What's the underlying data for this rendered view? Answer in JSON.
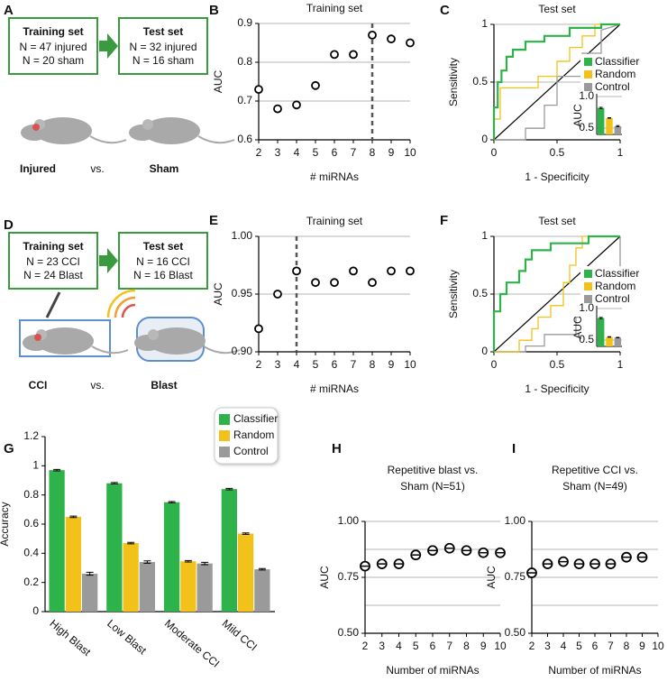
{
  "diagrams": [
    {
      "panel": "A",
      "boxes": [
        {
          "title": "Training set",
          "lines": [
            "N = 47 injured",
            "N = 20 sham"
          ]
        },
        {
          "title": "Test set",
          "lines": [
            "N = 32 injured",
            "N = 16 sham"
          ]
        }
      ],
      "labels": [
        "Injured",
        "vs.",
        "Sham"
      ]
    },
    {
      "panel": "D",
      "boxes": [
        {
          "title": "Training set",
          "lines": [
            "N = 23 CCI",
            "N = 24 Blast"
          ]
        },
        {
          "title": "Test set",
          "lines": [
            "N = 16 CCI",
            "N = 16 Blast"
          ]
        }
      ],
      "labels": [
        "CCI",
        "vs.",
        "Blast"
      ]
    }
  ],
  "chart_data": [
    {
      "panel": "B",
      "type": "scatter",
      "title": "Training set",
      "xlabel": "# miRNAs",
      "ylabel": "AUC",
      "x": [
        2,
        3,
        4,
        5,
        6,
        7,
        8,
        9,
        10
      ],
      "values": [
        0.73,
        0.68,
        0.69,
        0.74,
        0.82,
        0.82,
        0.87,
        0.86,
        0.85
      ],
      "xlim": [
        2,
        10
      ],
      "xticks": [
        2,
        3,
        4,
        5,
        6,
        7,
        8,
        9,
        10
      ],
      "ylim": [
        0.6,
        0.9
      ],
      "yticks": [
        0.6,
        0.7,
        0.8,
        0.9
      ],
      "grid": true,
      "vline": 8
    },
    {
      "panel": "C",
      "type": "line",
      "title": "Test set",
      "xlabel": "1 - Specificity",
      "ylabel": "Sensitivity",
      "xlim": [
        0,
        1
      ],
      "xticks": [
        0,
        0.5,
        1
      ],
      "ylim": [
        0,
        1
      ],
      "yticks": [
        0,
        0.5,
        1
      ],
      "grid": true,
      "legend": "right",
      "series": [
        {
          "name": "Classifier",
          "color": "#2db34a",
          "x": [
            0,
            0,
            0.03,
            0.03,
            0.06,
            0.06,
            0.1,
            0.1,
            0.15,
            0.15,
            0.25,
            0.25,
            0.4,
            0.4,
            0.6,
            0.6,
            0.85,
            0.85,
            1
          ],
          "values": [
            0,
            0.28,
            0.28,
            0.5,
            0.5,
            0.6,
            0.6,
            0.72,
            0.72,
            0.78,
            0.78,
            0.85,
            0.85,
            0.9,
            0.9,
            0.97,
            0.97,
            1,
            1
          ]
        },
        {
          "name": "Random",
          "color": "#f2c21b",
          "x": [
            0,
            0,
            0.05,
            0.05,
            0.35,
            0.35,
            0.5,
            0.5,
            0.6,
            0.6,
            0.7,
            0.7,
            0.8,
            0.8,
            1
          ],
          "values": [
            0,
            0.18,
            0.18,
            0.45,
            0.45,
            0.55,
            0.55,
            0.68,
            0.68,
            0.8,
            0.8,
            0.9,
            0.9,
            1,
            1
          ]
        },
        {
          "name": "Control",
          "color": "#9a9a9a",
          "x": [
            0,
            0.25,
            0.25,
            0.4,
            0.4,
            0.5,
            0.5,
            0.7,
            0.7,
            0.85,
            0.85,
            1
          ],
          "values": [
            0,
            0,
            0.1,
            0.1,
            0.3,
            0.3,
            0.55,
            0.55,
            0.75,
            0.75,
            0.95,
            1
          ]
        }
      ],
      "inset": {
        "ylabel": "AUC",
        "values": [
          0.82,
          0.66,
          0.53
        ],
        "errors": [
          0.01,
          0.005,
          0.01
        ],
        "ylim": [
          0.4,
          1
        ],
        "yticks": [
          0.5,
          {
            "value": 1,
            "label": "1.0"
          }
        ]
      }
    },
    {
      "panel": "E",
      "type": "scatter",
      "title": "Training set",
      "xlabel": "# miRNAs",
      "ylabel": "AUC",
      "x": [
        2,
        3,
        4,
        5,
        6,
        7,
        8,
        9,
        10
      ],
      "values": [
        0.92,
        0.95,
        0.97,
        0.96,
        0.96,
        0.97,
        0.96,
        0.97,
        0.97
      ],
      "xlim": [
        2,
        10
      ],
      "xticks": [
        2,
        3,
        4,
        5,
        6,
        7,
        8,
        9,
        10
      ],
      "ylim": [
        0.9,
        1.0
      ],
      "yticks": [
        {
          "value": 0.9,
          "label": "0.90"
        },
        {
          "value": 0.95,
          "label": "0.95"
        },
        {
          "value": 1.0,
          "label": "1.00"
        }
      ],
      "grid": true,
      "vline": 4
    },
    {
      "panel": "F",
      "type": "line",
      "title": "Test set",
      "xlabel": "1 - Specificity",
      "ylabel": "Sensitivity",
      "xlim": [
        0,
        1
      ],
      "xticks": [
        0,
        0.5,
        1
      ],
      "ylim": [
        0,
        1
      ],
      "yticks": [
        0,
        0.5,
        1
      ],
      "grid": true,
      "legend": "right",
      "series": [
        {
          "name": "Classifier",
          "color": "#2db34a",
          "x": [
            0,
            0,
            0.05,
            0.05,
            0.1,
            0.1,
            0.2,
            0.2,
            0.25,
            0.25,
            0.3,
            0.3,
            0.45,
            0.45,
            0.75,
            0.75,
            1
          ],
          "values": [
            0,
            0.35,
            0.35,
            0.5,
            0.5,
            0.6,
            0.6,
            0.7,
            0.7,
            0.8,
            0.8,
            0.88,
            0.88,
            0.94,
            0.94,
            1,
            1
          ]
        },
        {
          "name": "Random",
          "color": "#f2c21b",
          "x": [
            0,
            0.2,
            0.2,
            0.3,
            0.3,
            0.35,
            0.35,
            0.45,
            0.45,
            0.55,
            0.55,
            0.6,
            0.6,
            0.65,
            0.65,
            0.7,
            0.7,
            1
          ],
          "values": [
            0,
            0,
            0.1,
            0.1,
            0.2,
            0.2,
            0.3,
            0.3,
            0.4,
            0.4,
            0.6,
            0.6,
            0.75,
            0.75,
            0.9,
            0.9,
            1,
            1
          ]
        },
        {
          "name": "Control",
          "color": "#9a9a9a",
          "x": [
            0,
            0.25,
            0.25,
            0.4,
            0.4,
            0.65,
            0.65,
            0.75,
            0.75,
            0.9,
            0.9,
            1,
            1
          ],
          "values": [
            0,
            0,
            0.05,
            0.05,
            0.15,
            0.15,
            0.3,
            0.3,
            0.4,
            0.4,
            0.6,
            0.6,
            1
          ]
        }
      ],
      "inset": {
        "ylabel": "AUC",
        "values": [
          0.85,
          0.55,
          0.54
        ],
        "errors": [
          0.01,
          0.005,
          0.005
        ],
        "ylim": [
          0.4,
          1
        ],
        "yticks": [
          0.5,
          {
            "value": 1,
            "label": "1.0"
          }
        ]
      }
    },
    {
      "panel": "G",
      "type": "bar",
      "ylabel": "Accuracy",
      "categories": [
        "High Blast",
        "Low Blast",
        "Moderate CCI",
        "Mild CCI"
      ],
      "series": [
        {
          "name": "Classifier",
          "color": "#2db34a",
          "values": [
            0.97,
            0.88,
            0.75,
            0.84
          ],
          "errors": [
            0.005,
            0.005,
            0.005,
            0.005
          ]
        },
        {
          "name": "Random",
          "color": "#f2c21b",
          "values": [
            0.65,
            0.47,
            0.345,
            0.535
          ],
          "errors": [
            0.005,
            0.005,
            0.005,
            0.005
          ]
        },
        {
          "name": "Control",
          "color": "#9a9a9a",
          "values": [
            0.26,
            0.34,
            0.33,
            0.29
          ],
          "errors": [
            0.01,
            0.008,
            0.008,
            0.005
          ]
        }
      ],
      "ylim": [
        0,
        1.2
      ],
      "yticks": [
        0,
        0.2,
        0.4,
        0.6,
        0.8,
        1,
        1.2
      ],
      "legend": "upper right"
    },
    {
      "panel": "H",
      "type": "scatter",
      "title": [
        "Repetitive blast vs.",
        "Sham (N=51)"
      ],
      "xlabel": "Number of miRNAs",
      "ylabel": "AUC",
      "x": [
        2,
        3,
        4,
        5,
        6,
        7,
        8,
        9,
        10
      ],
      "values": [
        0.8,
        0.81,
        0.81,
        0.85,
        0.87,
        0.88,
        0.87,
        0.86,
        0.86
      ],
      "xlim": [
        2,
        10
      ],
      "xticks": [
        2,
        3,
        4,
        5,
        6,
        7,
        8,
        9,
        10
      ],
      "ylim": [
        0.5,
        1.0
      ],
      "yticks": [
        {
          "value": 0.5,
          "label": "0.50"
        },
        {
          "value": 0.75,
          "label": "0.75"
        },
        {
          "value": 1.0,
          "label": "1.00"
        }
      ],
      "grid": true,
      "minor_grid": [
        0.625,
        0.875
      ]
    },
    {
      "panel": "I",
      "type": "scatter",
      "title": [
        "Repetitive CCI vs.",
        "Sham (N=49)"
      ],
      "xlabel": "Number of miRNAs",
      "ylabel": "AUC",
      "x": [
        2,
        3,
        4,
        5,
        6,
        7,
        8,
        9
      ],
      "values": [
        0.77,
        0.81,
        0.82,
        0.81,
        0.81,
        0.81,
        0.84,
        0.84
      ],
      "xlim": [
        2,
        10
      ],
      "xticks": [
        2,
        3,
        4,
        5,
        6,
        7,
        8,
        9,
        10
      ],
      "ylim": [
        0.5,
        1.0
      ],
      "yticks": [
        {
          "value": 0.5,
          "label": "0.50"
        },
        {
          "value": 0.75,
          "label": "0.75"
        },
        {
          "value": 1.0,
          "label": "1.00"
        }
      ],
      "grid": true,
      "minor_grid": [
        0.625,
        0.875
      ]
    }
  ]
}
